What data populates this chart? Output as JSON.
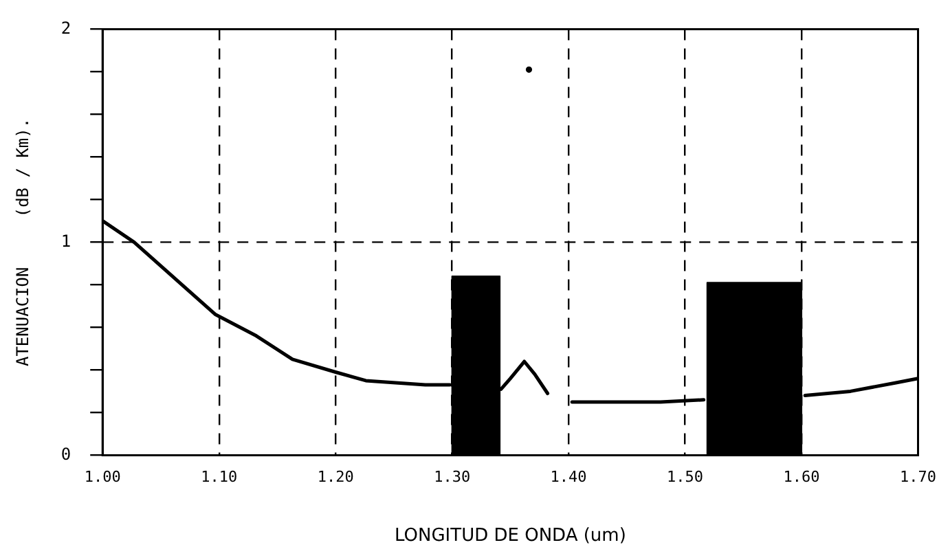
{
  "chart_data": {
    "type": "line",
    "xlabel": "LONGITUD DE ONDA (um)",
    "ylabel": "ATENUACION     (dB / Km).",
    "xlim": [
      1.0,
      1.7
    ],
    "xticks": [
      {
        "value": 1.0,
        "label": "1.00"
      },
      {
        "value": 1.1,
        "label": "1.10"
      },
      {
        "value": 1.2,
        "label": "1.20"
      },
      {
        "value": 1.3,
        "label": "1.30"
      },
      {
        "value": 1.4,
        "label": "1.40"
      },
      {
        "value": 1.5,
        "label": "1.50"
      },
      {
        "value": 1.6,
        "label": "1.60"
      },
      {
        "value": 1.7,
        "label": "1.70"
      }
    ],
    "ylim": [
      0,
      2
    ],
    "yticks": [
      0,
      {
        "value": 0.2,
        "label": null
      },
      {
        "value": 0.4,
        "label": null
      },
      {
        "value": 0.6,
        "label": null
      },
      {
        "value": 0.8,
        "label": null
      },
      1,
      {
        "value": 1.2,
        "label": null
      },
      {
        "value": 1.4,
        "label": null
      },
      {
        "value": 1.6,
        "label": null
      },
      {
        "value": 1.8,
        "label": null
      },
      2
    ],
    "grid": "x",
    "legend": false,
    "ref_lines": [
      {
        "axis": "y",
        "value": 1,
        "color": "#000000",
        "line_style": "dashed"
      }
    ],
    "series": [
      {
        "color": "#000000",
        "x": [
          1.0,
          1.027,
          1.097,
          1.132,
          1.163,
          1.2,
          1.226,
          1.277,
          1.298
        ],
        "values": [
          1.1,
          1.0,
          0.66,
          0.56,
          0.45,
          0.39,
          0.35,
          0.33,
          0.33
        ]
      },
      {
        "type": "area",
        "color": "#000000",
        "x": [
          1.3,
          1.3,
          1.341,
          1.341
        ],
        "values": [
          0,
          0.84,
          0.84,
          0
        ]
      },
      {
        "color": "#000000",
        "x": [
          1.342,
          1.35,
          1.362,
          1.371,
          1.382
        ],
        "values": [
          0.31,
          0.36,
          0.44,
          0.38,
          0.29
        ]
      },
      {
        "color": "#000000",
        "x": [
          1.403,
          1.479,
          1.516
        ],
        "values": [
          0.25,
          0.25,
          0.26
        ]
      },
      {
        "type": "area",
        "color": "#000000",
        "x": [
          1.519,
          1.519,
          1.6,
          1.6
        ],
        "values": [
          0,
          0.81,
          0.81,
          0
        ]
      },
      {
        "color": "#000000",
        "x": [
          1.603,
          1.642,
          1.681,
          1.7
        ],
        "values": [
          0.28,
          0.3,
          0.34,
          0.36
        ]
      },
      {
        "type": "scatter",
        "color": "#000000",
        "x": [
          1.366
        ],
        "values": [
          1.81
        ]
      }
    ]
  }
}
